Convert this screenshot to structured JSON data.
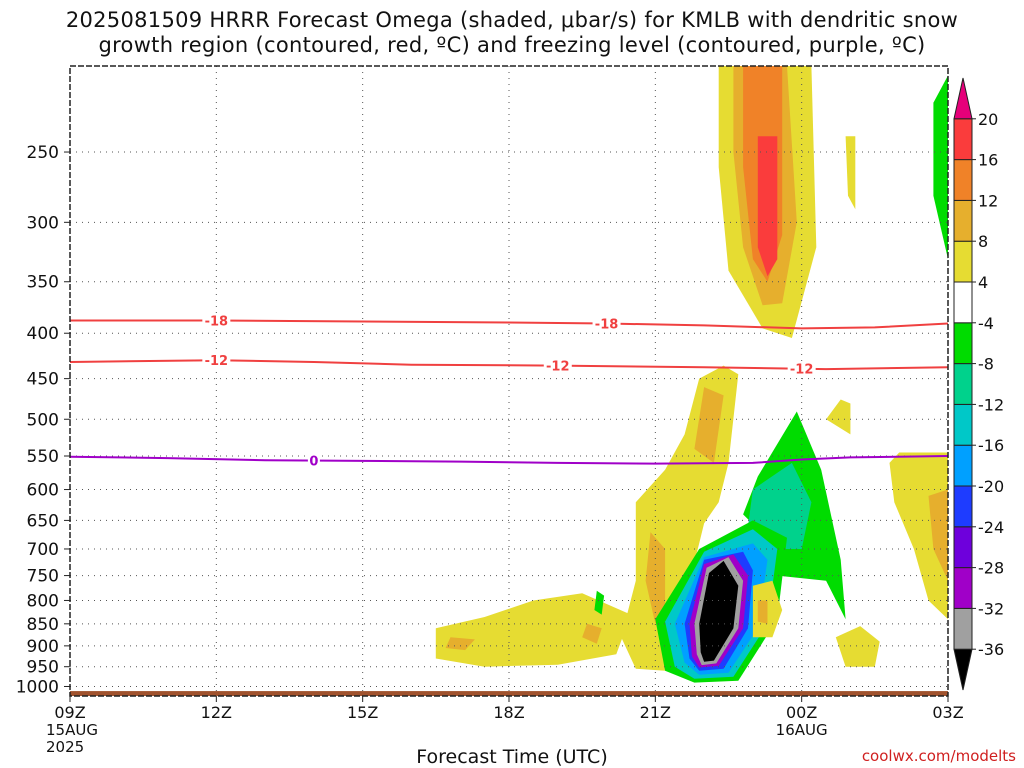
{
  "title_line1": "2025081509 HRRR Forecast Omega (shaded, μbar/s) for KMLB with dendritic snow",
  "title_line2": "growth region (contoured, red, ºC) and freezing level (contoured, purple, ºC)",
  "credit": "coolwx.com/modelts",
  "chart_data": {
    "type": "heatmap",
    "title": "2025081509 HRRR Forecast Omega (shaded, μbar/s) for KMLB with dendritic snow growth region (contoured, red, ºC) and freezing level (contoured, purple, ºC)",
    "xlabel": "Forecast Time (UTC)",
    "ylabel": "",
    "x_ticks": [
      "09Z",
      "12Z",
      "15Z",
      "18Z",
      "21Z",
      "00Z",
      "03Z"
    ],
    "x_tick_hours": [
      9,
      12,
      15,
      18,
      21,
      24,
      27
    ],
    "xlim": [
      9,
      27
    ],
    "date_labels": [
      {
        "hour": 9,
        "lines": [
          "15AUG",
          "2025"
        ]
      },
      {
        "hour": 24,
        "lines": [
          "16AUG"
        ]
      }
    ],
    "y_ticks": [
      250,
      300,
      350,
      400,
      450,
      500,
      550,
      600,
      650,
      700,
      750,
      800,
      850,
      900,
      950,
      1000
    ],
    "ylim": [
      1025,
      200
    ],
    "y_scale": "log-pressure",
    "grid": true,
    "colorbar": {
      "levels": [
        "-36",
        "-32",
        "-28",
        "-24",
        "-20",
        "-16",
        "-12",
        "-8",
        "-4",
        "4",
        "8",
        "12",
        "16",
        "20"
      ],
      "colors": [
        "#000000",
        "#a0a0a0",
        "#a000c8",
        "#6e00dc",
        "#1e3cff",
        "#00a0ff",
        "#00c8c8",
        "#00d28c",
        "#00dc00",
        "#ffffff",
        "#e6dc32",
        "#e6af2d",
        "#f08228",
        "#fa3c3c",
        "#e6007a"
      ]
    },
    "contours": [
      {
        "label": "-18",
        "color": "#f04040",
        "points": [
          [
            9,
            387
          ],
          [
            12,
            387
          ],
          [
            15,
            388
          ],
          [
            18,
            389
          ],
          [
            20,
            390
          ],
          [
            22,
            392
          ],
          [
            24,
            395
          ],
          [
            25.5,
            394
          ],
          [
            27,
            390
          ]
        ],
        "label_hours": [
          12,
          20
        ]
      },
      {
        "label": "-12",
        "color": "#f04040",
        "points": [
          [
            9,
            431
          ],
          [
            12,
            429
          ],
          [
            14,
            431
          ],
          [
            16,
            434
          ],
          [
            19,
            435
          ],
          [
            22,
            437
          ],
          [
            24.5,
            439
          ],
          [
            27,
            437
          ]
        ],
        "label_hours": [
          12,
          19,
          24
        ]
      },
      {
        "label": "0",
        "color": "#a000c8",
        "points": [
          [
            9,
            551
          ],
          [
            11,
            553
          ],
          [
            13,
            556
          ],
          [
            15,
            557
          ],
          [
            17,
            558
          ],
          [
            19,
            560
          ],
          [
            21,
            561
          ],
          [
            23,
            560
          ],
          [
            24,
            555
          ],
          [
            25,
            552
          ],
          [
            27,
            550
          ]
        ],
        "label_hours": [
          14
        ]
      }
    ],
    "shaded_regions": [
      {
        "level": "4",
        "polygon": [
          [
            22.3,
            200
          ],
          [
            24.2,
            200
          ],
          [
            24.3,
            320
          ],
          [
            23.8,
            405
          ],
          [
            23.2,
            395
          ],
          [
            22.5,
            340
          ],
          [
            22.3,
            260
          ]
        ]
      },
      {
        "level": "8",
        "polygon": [
          [
            22.6,
            200
          ],
          [
            23.7,
            200
          ],
          [
            23.9,
            300
          ],
          [
            23.6,
            370
          ],
          [
            23.2,
            372
          ],
          [
            22.8,
            320
          ],
          [
            22.6,
            250
          ]
        ]
      },
      {
        "level": "12",
        "polygon": [
          [
            22.8,
            200
          ],
          [
            23.6,
            200
          ],
          [
            23.6,
            310
          ],
          [
            23.3,
            350
          ],
          [
            23.0,
            330
          ],
          [
            22.8,
            260
          ]
        ]
      },
      {
        "level": "16",
        "polygon": [
          [
            23.1,
            240
          ],
          [
            23.5,
            240
          ],
          [
            23.5,
            330
          ],
          [
            23.3,
            345
          ],
          [
            23.1,
            320
          ]
        ]
      },
      {
        "level": "4",
        "polygon": [
          [
            22.4,
            435
          ],
          [
            22.7,
            445
          ],
          [
            22.5,
            560
          ],
          [
            22.3,
            620
          ],
          [
            22.0,
            655
          ],
          [
            21.9,
            690
          ],
          [
            21.7,
            760
          ],
          [
            21.5,
            830
          ],
          [
            21.4,
            905
          ],
          [
            21.2,
            960
          ],
          [
            20.6,
            955
          ],
          [
            20.3,
            880
          ],
          [
            20.6,
            760
          ],
          [
            20.6,
            620
          ],
          [
            21.2,
            570
          ],
          [
            21.6,
            520
          ],
          [
            21.9,
            450
          ]
        ]
      },
      {
        "level": "8",
        "polygon": [
          [
            20.9,
            670
          ],
          [
            21.2,
            700
          ],
          [
            21.2,
            830
          ],
          [
            21.0,
            850
          ],
          [
            20.8,
            760
          ]
        ]
      },
      {
        "level": "8",
        "polygon": [
          [
            22.0,
            460
          ],
          [
            22.4,
            470
          ],
          [
            22.2,
            560
          ],
          [
            21.8,
            540
          ]
        ]
      },
      {
        "level": "4",
        "polygon": [
          [
            16.5,
            860
          ],
          [
            17.5,
            835
          ],
          [
            18.5,
            800
          ],
          [
            19.5,
            785
          ],
          [
            20.5,
            830
          ],
          [
            20.2,
            920
          ],
          [
            19.0,
            945
          ],
          [
            17.5,
            950
          ],
          [
            16.5,
            930
          ]
        ]
      },
      {
        "level": "8",
        "polygon": [
          [
            16.8,
            880
          ],
          [
            17.3,
            885
          ],
          [
            17.1,
            910
          ],
          [
            16.7,
            905
          ]
        ]
      },
      {
        "level": "8",
        "polygon": [
          [
            19.6,
            850
          ],
          [
            19.9,
            860
          ],
          [
            19.8,
            895
          ],
          [
            19.5,
            880
          ]
        ]
      },
      {
        "level": "-4",
        "polygon": [
          [
            23.9,
            490
          ],
          [
            24.4,
            570
          ],
          [
            24.8,
            720
          ],
          [
            24.9,
            840
          ],
          [
            24.5,
            760
          ],
          [
            23.5,
            750
          ],
          [
            23.4,
            690
          ],
          [
            22.8,
            640
          ],
          [
            23.1,
            580
          ]
        ]
      },
      {
        "level": "-8",
        "polygon": [
          [
            23.0,
            600
          ],
          [
            23.8,
            560
          ],
          [
            24.2,
            620
          ],
          [
            24.0,
            700
          ],
          [
            23.4,
            700
          ],
          [
            22.9,
            660
          ]
        ]
      },
      {
        "level": "-4",
        "polygon": [
          [
            21.0,
            840
          ],
          [
            21.9,
            700
          ],
          [
            23.0,
            650
          ],
          [
            23.7,
            680
          ],
          [
            23.5,
            840
          ],
          [
            22.7,
            985
          ],
          [
            21.8,
            990
          ],
          [
            21.2,
            960
          ]
        ]
      },
      {
        "level": "-12",
        "polygon": [
          [
            21.2,
            845
          ],
          [
            22.0,
            705
          ],
          [
            23.0,
            665
          ],
          [
            23.5,
            700
          ],
          [
            23.3,
            850
          ],
          [
            22.6,
            975
          ],
          [
            21.8,
            980
          ],
          [
            21.4,
            950
          ]
        ]
      },
      {
        "level": "-16",
        "polygon": [
          [
            21.4,
            850
          ],
          [
            22.0,
            715
          ],
          [
            23.0,
            690
          ],
          [
            23.3,
            720
          ],
          [
            23.1,
            860
          ],
          [
            22.5,
            965
          ],
          [
            21.9,
            970
          ],
          [
            21.6,
            940
          ]
        ]
      },
      {
        "level": "-20",
        "polygon": [
          [
            21.6,
            850
          ],
          [
            22.0,
            720
          ],
          [
            22.8,
            705
          ],
          [
            23.0,
            740
          ],
          [
            22.9,
            860
          ],
          [
            22.4,
            955
          ],
          [
            21.9,
            960
          ],
          [
            21.7,
            930
          ]
        ]
      },
      {
        "level": "-28",
        "polygon": [
          [
            21.7,
            850
          ],
          [
            22.0,
            728
          ],
          [
            22.6,
            710
          ],
          [
            22.9,
            750
          ],
          [
            22.8,
            860
          ],
          [
            22.3,
            948
          ],
          [
            21.9,
            952
          ],
          [
            21.75,
            925
          ]
        ]
      },
      {
        "level": "-32",
        "polygon": [
          [
            21.8,
            850
          ],
          [
            22.05,
            735
          ],
          [
            22.5,
            715
          ],
          [
            22.8,
            760
          ],
          [
            22.7,
            860
          ],
          [
            22.25,
            942
          ],
          [
            21.95,
            946
          ],
          [
            21.85,
            920
          ]
        ]
      },
      {
        "level": "-36",
        "polygon": [
          [
            21.9,
            850
          ],
          [
            22.1,
            745
          ],
          [
            22.4,
            722
          ],
          [
            22.7,
            770
          ],
          [
            22.6,
            860
          ],
          [
            22.2,
            935
          ],
          [
            22.0,
            938
          ],
          [
            21.93,
            915
          ]
        ]
      },
      {
        "level": "-4",
        "polygon": [
          [
            19.8,
            780
          ],
          [
            19.95,
            790
          ],
          [
            19.9,
            830
          ],
          [
            19.75,
            820
          ]
        ]
      },
      {
        "level": "4",
        "polygon": [
          [
            23.0,
            770
          ],
          [
            23.4,
            760
          ],
          [
            23.6,
            820
          ],
          [
            23.4,
            880
          ],
          [
            23.0,
            880
          ]
        ]
      },
      {
        "level": "8",
        "polygon": [
          [
            23.1,
            800
          ],
          [
            23.3,
            800
          ],
          [
            23.3,
            850
          ],
          [
            23.1,
            845
          ]
        ]
      },
      {
        "level": "4",
        "polygon": [
          [
            24.8,
            475
          ],
          [
            25.0,
            480
          ],
          [
            25.0,
            520
          ],
          [
            24.5,
            500
          ]
        ]
      },
      {
        "level": "4",
        "polygon": [
          [
            24.9,
            240
          ],
          [
            25.1,
            240
          ],
          [
            25.1,
            290
          ],
          [
            24.95,
            280
          ]
        ]
      },
      {
        "level": "4",
        "polygon": [
          [
            25.2,
            855
          ],
          [
            25.6,
            890
          ],
          [
            25.5,
            950
          ],
          [
            24.9,
            950
          ],
          [
            24.7,
            880
          ]
        ]
      },
      {
        "level": "4",
        "polygon": [
          [
            26.0,
            545
          ],
          [
            27.0,
            545
          ],
          [
            27.0,
            840
          ],
          [
            26.6,
            800
          ],
          [
            26.3,
            700
          ],
          [
            25.9,
            620
          ],
          [
            25.8,
            560
          ]
        ]
      },
      {
        "level": "8",
        "polygon": [
          [
            26.6,
            610
          ],
          [
            27.0,
            600
          ],
          [
            27.0,
            760
          ],
          [
            26.7,
            700
          ]
        ]
      },
      {
        "level": "-4",
        "polygon": [
          [
            26.7,
            220
          ],
          [
            27.0,
            205
          ],
          [
            27.0,
            330
          ],
          [
            26.7,
            280
          ]
        ]
      }
    ],
    "terrain": [
      {
        "hours": [
          9,
          27
        ],
        "pressure": 1012
      }
    ]
  }
}
